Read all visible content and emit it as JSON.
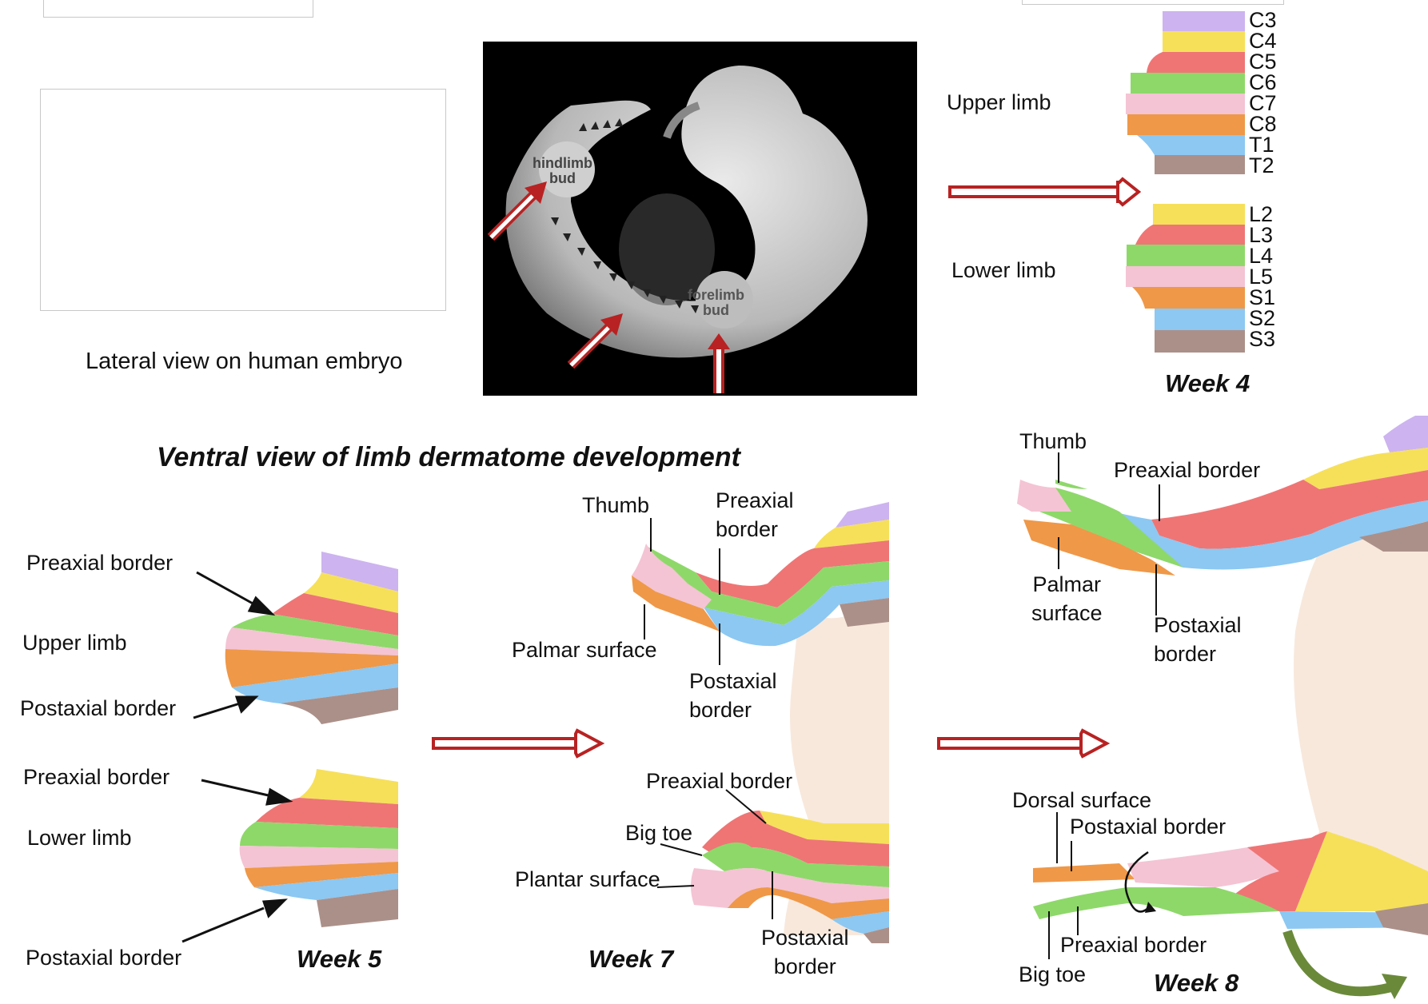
{
  "caption": "Lateral view on human embryo",
  "section_title": "Ventral view of limb dermatome development",
  "embryo": {
    "hindlimb_label": "hindlimb\nbud",
    "forelimb_label": "forelimb\nbud"
  },
  "week4": {
    "label": "Week 4",
    "upper_label": "Upper limb",
    "lower_label": "Lower limb",
    "upper_segments": [
      "C3",
      "C4",
      "C5",
      "C6",
      "C7",
      "C8",
      "T1",
      "T2"
    ],
    "lower_segments": [
      "L2",
      "L3",
      "L4",
      "L5",
      "S1",
      "S2",
      "S3"
    ]
  },
  "week5": {
    "label": "Week 5",
    "preaxial_upper": "Preaxial border",
    "upper_limb": "Upper limb",
    "postaxial_upper": "Postaxial border",
    "preaxial_lower": "Preaxial border",
    "lower_limb": "Lower limb",
    "postaxial_lower": "Postaxial border"
  },
  "week7": {
    "label": "Week 7",
    "thumb": "Thumb",
    "preaxial_upper": "Preaxial\nborder",
    "palmar": "Palmar surface",
    "postaxial_upper": "Postaxial\nborder",
    "preaxial_lower": "Preaxial border",
    "big_toe": "Big toe",
    "plantar": "Plantar surface",
    "postaxial_lower": "Postaxial\nborder"
  },
  "week8": {
    "label": "Week 8",
    "thumb": "Thumb",
    "preaxial_upper": "Preaxial border",
    "palmar": "Palmar\nsurface",
    "postaxial_upper": "Postaxial\nborder",
    "dorsal": "Dorsal surface",
    "postaxial_lower": "Postaxial border",
    "preaxial_lower": "Preaxial border",
    "big_toe": "Big toe"
  },
  "colors": {
    "C3": "#cdb3ef",
    "C4": "#f6e05a",
    "C5": "#ef7575",
    "C6": "#8ed86a",
    "C7": "#f4c4d4",
    "C8": "#ef9848",
    "T1": "#8cc8f2",
    "T2": "#ab9089",
    "arrow": "#b82222",
    "skin": "#f8e8dc",
    "green_arrow": "#6a8a3a"
  }
}
